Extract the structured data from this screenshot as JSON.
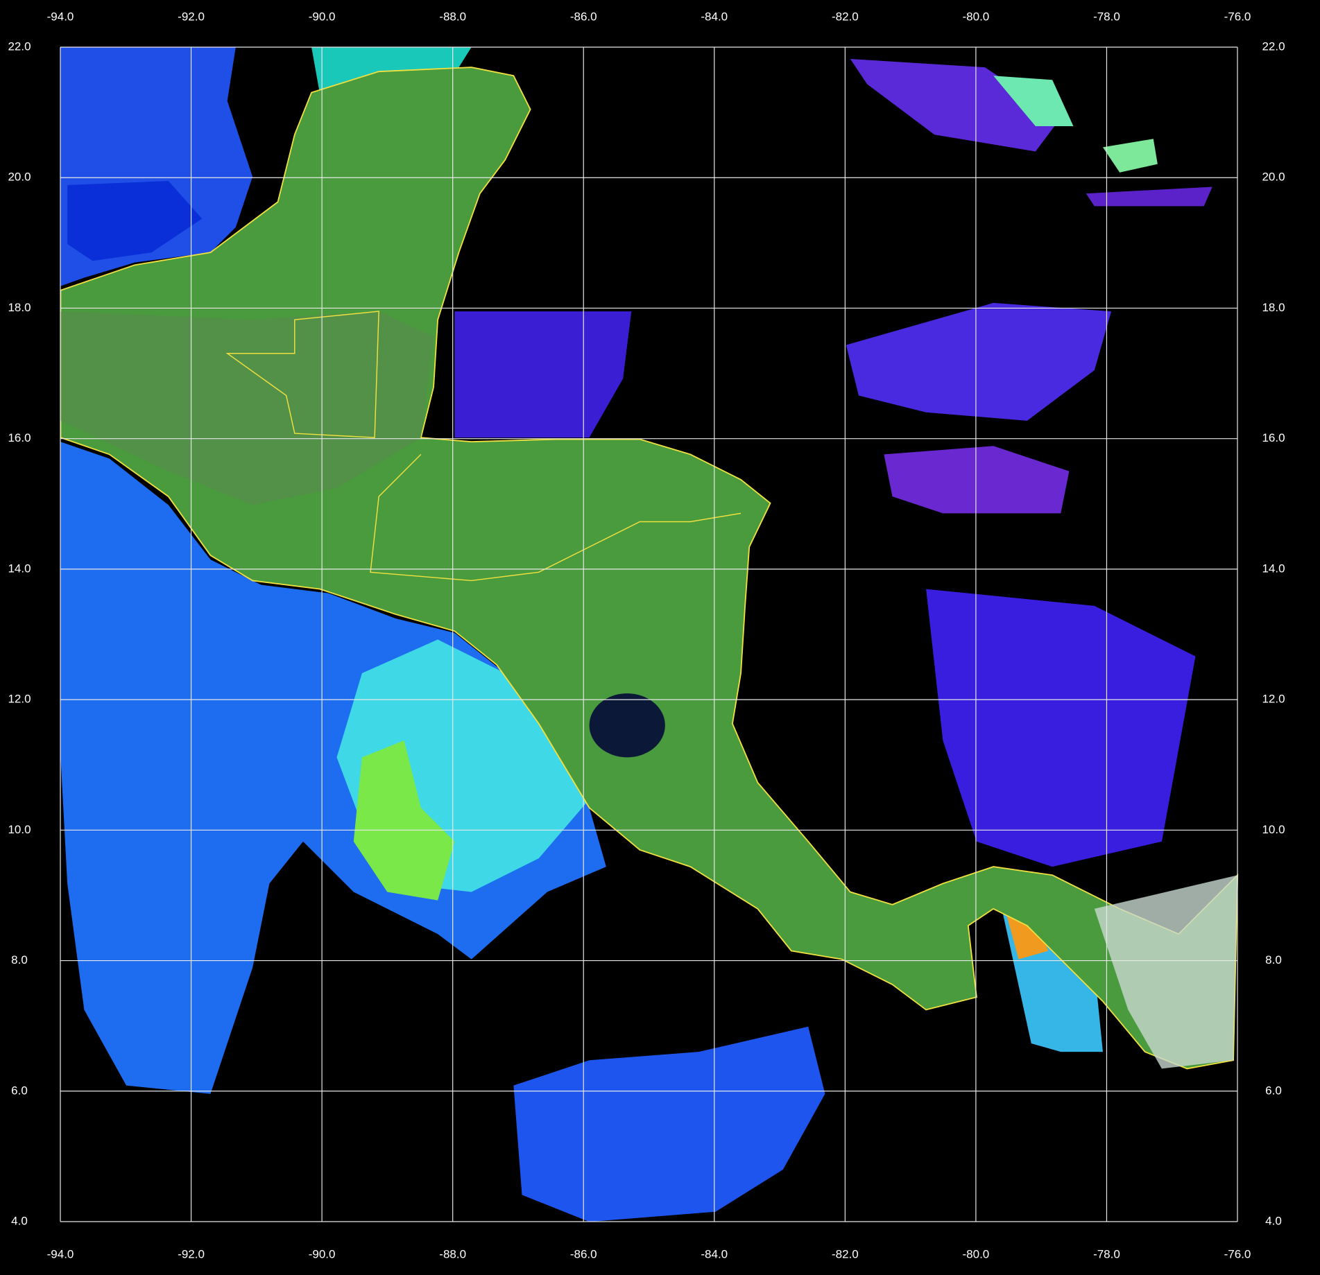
{
  "map": {
    "xlim": [
      -94,
      -76
    ],
    "ylim": [
      4,
      22
    ],
    "xticks": [
      {
        "value": -94,
        "label": "-94.0"
      },
      {
        "value": -92,
        "label": "-92.0"
      },
      {
        "value": -90,
        "label": "-90.0"
      },
      {
        "value": -88,
        "label": "-88.0"
      },
      {
        "value": -86,
        "label": "-86.0"
      },
      {
        "value": -84,
        "label": "-84.0"
      },
      {
        "value": -82,
        "label": "-82.0"
      },
      {
        "value": -80,
        "label": "-80.0"
      },
      {
        "value": -78,
        "label": "-78.0"
      },
      {
        "value": -76,
        "label": "-76.0"
      }
    ],
    "yticks": [
      {
        "value": 22,
        "label": "22.0"
      },
      {
        "value": 20,
        "label": "20.0"
      },
      {
        "value": 18,
        "label": "18.0"
      },
      {
        "value": 16,
        "label": "16.0"
      },
      {
        "value": 14,
        "label": "14.0"
      },
      {
        "value": 12,
        "label": "12.0"
      },
      {
        "value": 10,
        "label": "10.0"
      },
      {
        "value": 8,
        "label": "8.0"
      },
      {
        "value": 6,
        "label": "6.0"
      },
      {
        "value": 4,
        "label": "4.0"
      }
    ],
    "grid": true
  }
}
